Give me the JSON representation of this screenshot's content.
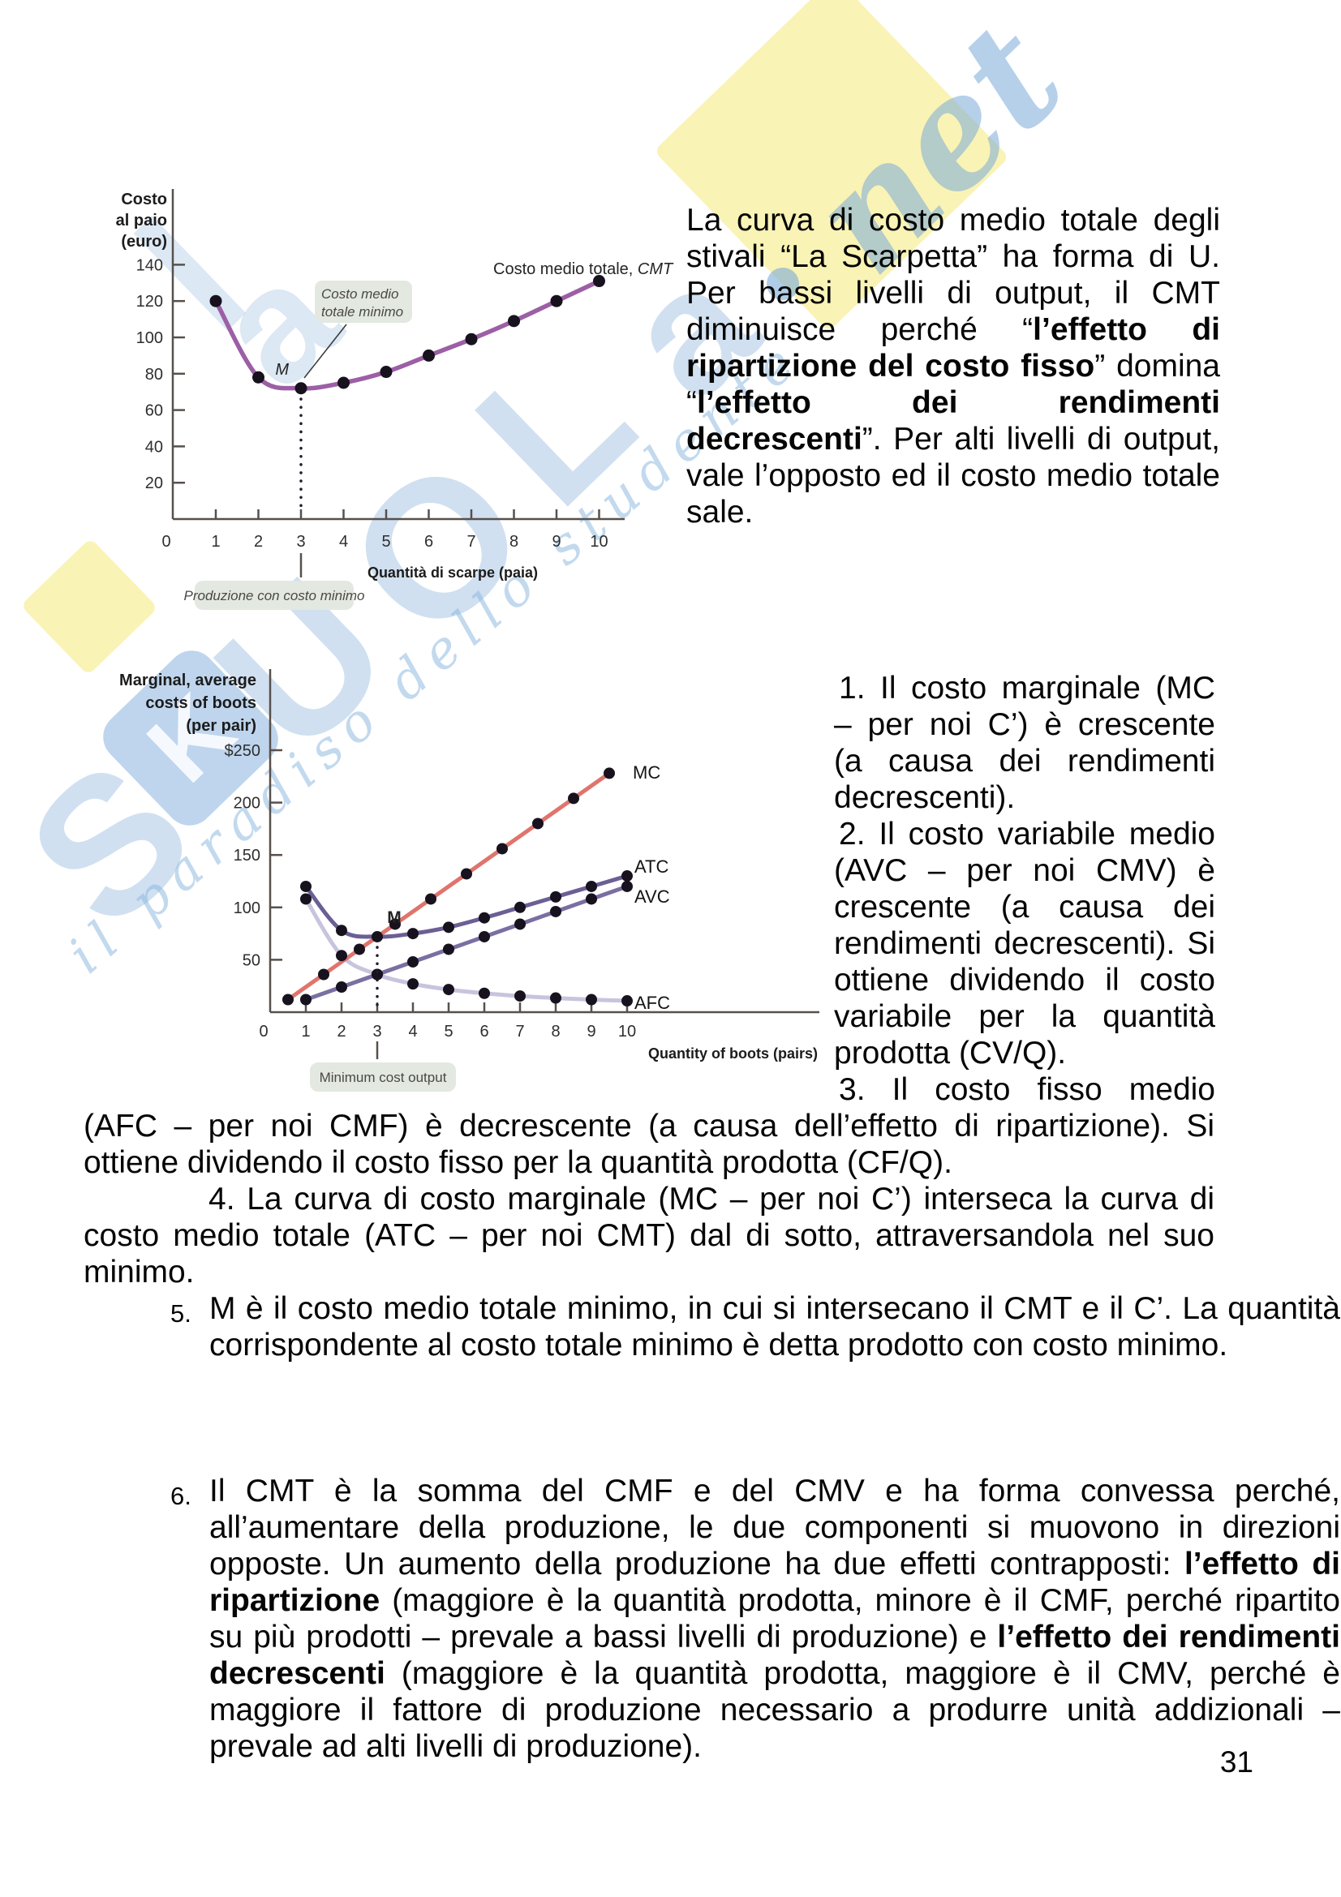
{
  "page": {
    "number": "31"
  },
  "watermark": {
    "letters": [
      "S",
      "U",
      "O",
      "L",
      "a"
    ],
    "badge_letter": "K",
    "extra_letters": [
      "l",
      "a"
    ],
    "net_text": "net",
    "tagline": "il paradiso dello studente",
    "blue": "#a9c6e4",
    "yellow": "#f8f2ad"
  },
  "paragraph_top": {
    "segments": [
      {
        "t": "La curva di costo medio totale degli stivali “La Scarpetta” ha forma di U. Per bassi livelli di output, il CMT diminuisce perché “"
      },
      {
        "t": "l’effetto di ripartizione del costo fisso",
        "b": true
      },
      {
        "t": "” domina “"
      },
      {
        "t": "l’effetto dei rendimenti decrescenti",
        "b": true
      },
      {
        "t": "”. Per alti livelli di output, vale l’opposto ed il costo medio totale sale."
      }
    ]
  },
  "notes": {
    "item1": {
      "segments": [
        {
          "t": "1. Il costo marginale (MC – per noi C’) è crescente (a causa dei rendimenti decrescenti)."
        }
      ]
    },
    "item2": {
      "segments": [
        {
          "t": "2. Il costo variabile medio (AVC – per noi CMV) è crescente (a causa dei rendimenti decrescenti). Si ottiene dividendo il costo variabile per la quantità prodotta (CV/Q)."
        }
      ]
    },
    "item3_first_line": "3. Il costo fisso medio",
    "item3_rest": {
      "segments": [
        {
          "t": "(AFC – per noi CMF) è decrescente (a causa dell’effetto di ripartizione). Si ottiene dividendo il costo fisso per la quantità prodotta (CF/Q)."
        }
      ]
    },
    "item4": {
      "segments": [
        {
          "t": "4. La curva di costo marginale (MC – per noi C’) interseca la curva di costo medio totale (ATC – per noi CMT) dal di sotto, attraversandola nel suo minimo."
        }
      ]
    },
    "item5": {
      "number": "5.",
      "segments": [
        {
          "t": "M è il costo medio totale minimo, in cui si intersecano il CMT e il C’. La quantità corrispondente al costo totale minimo è detta prodotto con costo minimo."
        }
      ]
    },
    "item6": {
      "number": "6.",
      "segments": [
        {
          "t": "Il CMT è la somma del CMF e del CMV e ha forma convessa perché, all’aumentare della produzione, le due componenti si muovono in direzioni opposte. Un aumento della produzione ha due effetti contrapposti: "
        },
        {
          "t": "l’effetto di ripartizione",
          "b": true
        },
        {
          "t": " (maggiore è la quantità prodotta, minore è il CMF, perché ripartito su più prodotti – prevale a bassi livelli di produzione) e "
        },
        {
          "t": "l’effetto dei rendimenti decrescenti",
          "b": true
        },
        {
          "t": " (maggiore è la quantità prodotta, maggiore è il CMV, perché è maggiore il fattore di produzione necessario a produrre unità addizionali – prevale ad alti livelli di produzione)."
        }
      ]
    }
  },
  "chart_data": [
    {
      "type": "line",
      "ylabel_lines": [
        "Costo",
        "al paio",
        "(euro)"
      ],
      "xlabel": "Quantità di scarpe (paia)",
      "curve_label_prefix": "Costo medio totale, ",
      "curve_label_symbol": "CMT",
      "x": [
        1,
        2,
        3,
        4,
        5,
        6,
        7,
        8,
        9,
        10
      ],
      "series": [
        {
          "name": "CMT",
          "values": [
            120,
            78,
            72,
            75,
            81,
            90,
            99,
            109,
            120,
            131
          ],
          "color": "#9c5fa5"
        }
      ],
      "yticks": [
        20,
        40,
        60,
        80,
        100,
        120,
        140
      ],
      "xticks": [
        0,
        1,
        2,
        3,
        4,
        5,
        6,
        7,
        8,
        9,
        10
      ],
      "xlim": [
        0,
        10.6
      ],
      "ylim": [
        0,
        160
      ],
      "grid": false,
      "legend": "none",
      "annotations": {
        "min_label": "M",
        "min_point": {
          "x": 3,
          "y": 72
        },
        "callout_lines": [
          "Costo medio",
          "totale minimo"
        ],
        "xaxis_note": "Produzione con costo minimo"
      }
    },
    {
      "type": "line",
      "ylabel_lines": [
        "Marginal, average",
        "costs of boots",
        "(per pair)"
      ],
      "xlabel": "Quantity of boots (pairs)",
      "series": [
        {
          "name": "MC",
          "x": [
            0.5,
            1.5,
            2.5,
            3.5,
            4.5,
            5.5,
            6.5,
            7.5,
            8.5,
            9.5
          ],
          "values": [
            12,
            36,
            60,
            84,
            108,
            132,
            156,
            180,
            204,
            228
          ],
          "color": "#e0746c"
        },
        {
          "name": "ATC",
          "x": [
            1,
            2,
            3,
            4,
            5,
            6,
            7,
            8,
            9,
            10
          ],
          "values": [
            120,
            78,
            72,
            75,
            81,
            90,
            100,
            110,
            120,
            130
          ],
          "color": "#6b5f94"
        },
        {
          "name": "AVC",
          "x": [
            1,
            2,
            3,
            4,
            5,
            6,
            7,
            8,
            9,
            10
          ],
          "values": [
            12,
            24,
            36,
            48,
            60,
            72,
            84,
            96,
            108,
            120
          ],
          "color": "#7a6fa2"
        },
        {
          "name": "AFC",
          "x": [
            1,
            2,
            3,
            4,
            5,
            6,
            7,
            8,
            9,
            10
          ],
          "values": [
            108,
            54,
            36,
            27,
            21.6,
            18,
            15.4,
            13.5,
            12,
            10.8
          ],
          "color": "#c8c4de"
        }
      ],
      "yticks": [
        50,
        100,
        150,
        200,
        250
      ],
      "ytick_labels": [
        "50",
        "100",
        "150",
        "200",
        "$250"
      ],
      "xticks": [
        0,
        1,
        2,
        3,
        4,
        5,
        6,
        7,
        8,
        9,
        10
      ],
      "xlim": [
        0,
        10.8
      ],
      "ylim": [
        0,
        270
      ],
      "grid": false,
      "legend": "inline-right",
      "annotations": {
        "min_label": "M",
        "min_point": {
          "x": 3,
          "y": 72
        },
        "xaxis_note": "Minimum cost output"
      }
    }
  ]
}
